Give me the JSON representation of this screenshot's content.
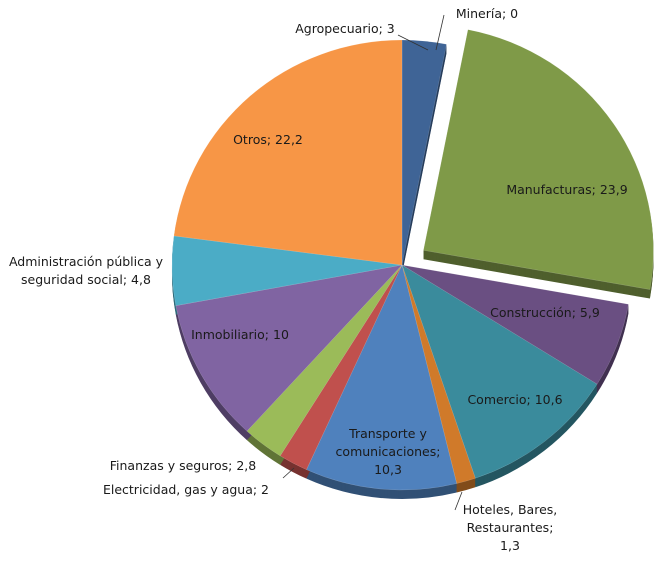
{
  "chart_data": {
    "type": "pie",
    "title": "",
    "start": "top",
    "direction": "clockwise",
    "exploded": "Manufacturas",
    "slices": [
      {
        "name": "Agropecuario",
        "value": 3,
        "label": [
          "Agropecuario; 3"
        ],
        "color": "#3f6496"
      },
      {
        "name": "Minería",
        "value": 0,
        "label": [
          "Minería; 0"
        ],
        "color": "#2c4d7a"
      },
      {
        "name": "Manufacturas",
        "value": 23.9,
        "label": [
          "Manufacturas; 23,9"
        ],
        "color": "#7f9a48"
      },
      {
        "name": "Construcción",
        "value": 5.9,
        "label": [
          "Construcción; 5,9"
        ],
        "color": "#6a4f82"
      },
      {
        "name": "Comercio",
        "value": 10.6,
        "label": [
          "Comercio; 10,6"
        ],
        "color": "#3a8b9c"
      },
      {
        "name": "Hoteles, Bares, Restaurantes",
        "value": 1.3,
        "label": [
          "Hoteles, Bares,",
          "Restaurantes;",
          "1,3"
        ],
        "color": "#d07a2a"
      },
      {
        "name": "Transporte y comunicaciones",
        "value": 10.3,
        "label": [
          "Transporte y",
          "comunicaciones;",
          "10,3"
        ],
        "color": "#4f81bd"
      },
      {
        "name": "Electricidad, gas y agua",
        "value": 2,
        "label": [
          "Electricidad, gas y agua; 2"
        ],
        "color": "#c0504d"
      },
      {
        "name": "Finanzas y seguros",
        "value": 2.8,
        "label": [
          "Finanzas y seguros; 2,8"
        ],
        "color": "#9bbb59"
      },
      {
        "name": "Inmobiliario",
        "value": 10,
        "label": [
          "Inmobiliario; 10"
        ],
        "color": "#8064a2"
      },
      {
        "name": "Administración pública y seguridad social",
        "value": 4.8,
        "label": [
          "Administración pública y",
          "seguridad social; 4,8"
        ],
        "color": "#4bacc6"
      },
      {
        "name": "Otros",
        "value": 22.2,
        "label": [
          "Otros; 22,2"
        ],
        "color": "#f79646"
      }
    ]
  }
}
